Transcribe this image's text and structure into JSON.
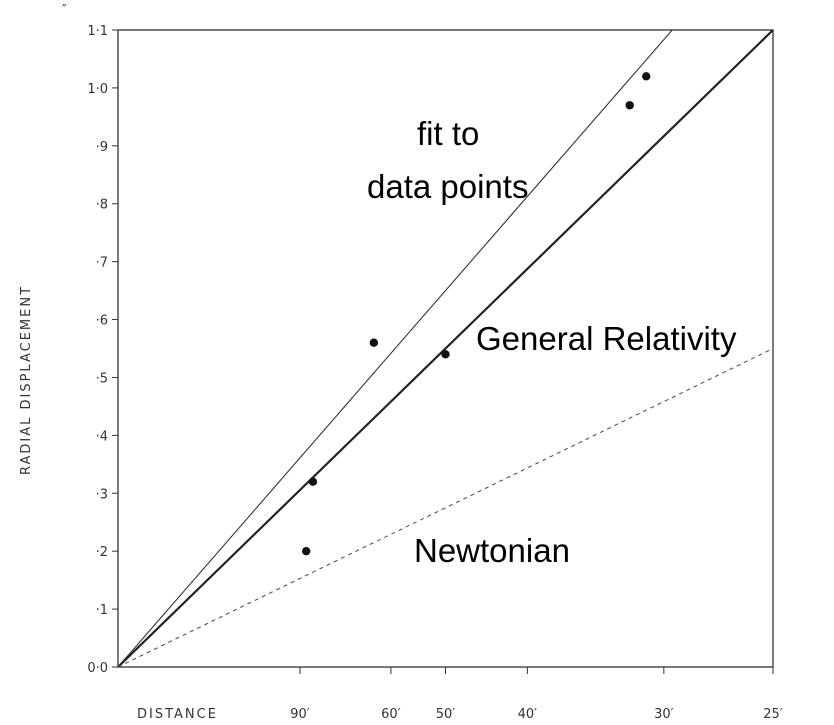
{
  "chart_data": {
    "type": "scatter",
    "xlabel": "DISTANCE",
    "ylabel": "RADIAL   DISPLACEMENT",
    "y_unit": "″",
    "x_ticks": [
      "90′",
      "60′",
      "50′",
      "40′",
      "30′",
      "25′"
    ],
    "y_ticks": [
      "0·0",
      "·1",
      "·2",
      "·3",
      "·4",
      "·5",
      "·6",
      "·7",
      "·8",
      "·9",
      "1·0",
      "1·1"
    ],
    "x_domain_note": "x axis is reciprocal distance; origin corresponds to infinite distance",
    "ylim": [
      0,
      1.1
    ],
    "grid": false,
    "points": [
      {
        "x": 87,
        "y": 0.2
      },
      {
        "x": 84,
        "y": 0.32
      },
      {
        "x": 64,
        "y": 0.56
      },
      {
        "x": 50,
        "y": 0.54
      },
      {
        "x": 32,
        "y": 0.97
      },
      {
        "x": 31,
        "y": 1.02
      }
    ],
    "lines": [
      {
        "name": "fit to data points",
        "style": "thin solid",
        "end_y_at_25": 1.3
      },
      {
        "name": "General Relativity",
        "style": "thick solid",
        "end_y_at_25": 1.1
      },
      {
        "name": "Newtonian",
        "style": "dashed",
        "end_y_at_25": 0.55
      }
    ],
    "annotations": [
      {
        "id": "fit",
        "text_lines": [
          "fit to",
          "data points"
        ]
      },
      {
        "id": "gr",
        "text": "General Relativity"
      },
      {
        "id": "newton",
        "text": "Newtonian"
      }
    ]
  }
}
